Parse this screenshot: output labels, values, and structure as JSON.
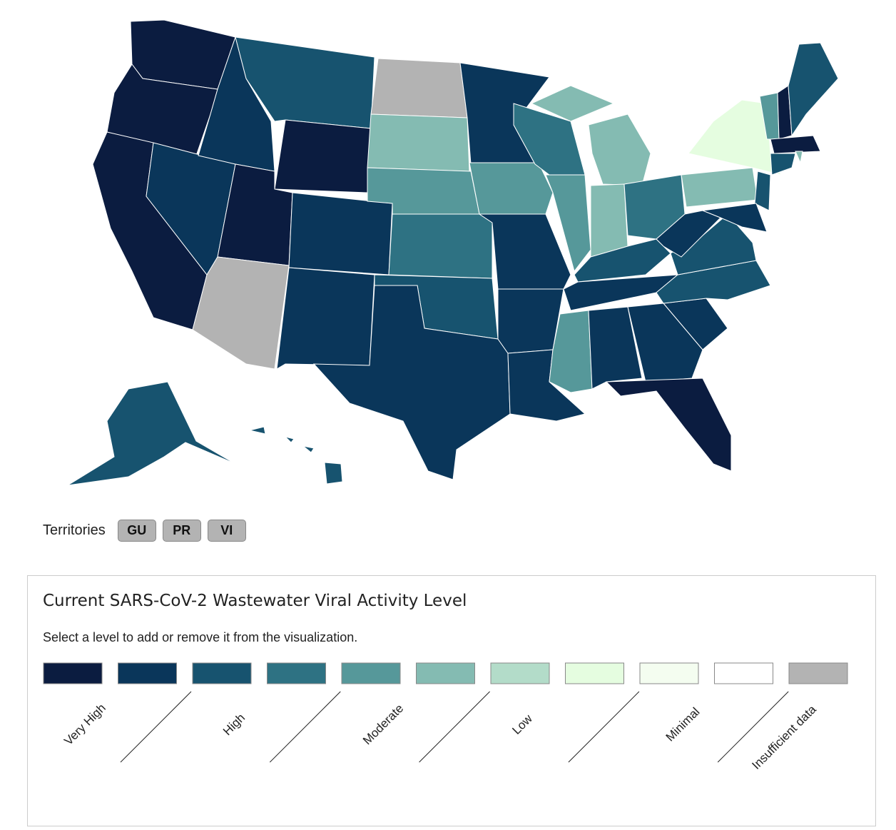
{
  "territories": {
    "label": "Territories",
    "buttons": [
      "GU",
      "PR",
      "VI"
    ]
  },
  "legend": {
    "title": "Current SARS-CoV-2 Wastewater Viral Activity Level",
    "subtitle": "Select a level to add or remove it from the visualization.",
    "swatches": [
      "#0b1c40",
      "#0a365a",
      "#17536f",
      "#2e7283",
      "#56989a",
      "#84bbb2",
      "#b3dcc9",
      "#e5fde0",
      "#f4fdf0",
      "#ffffff",
      "#b3b3b3"
    ],
    "labels": [
      "Very High",
      "High",
      "Moderate",
      "Low",
      "Minimal",
      "Insufficient data"
    ]
  }
}
